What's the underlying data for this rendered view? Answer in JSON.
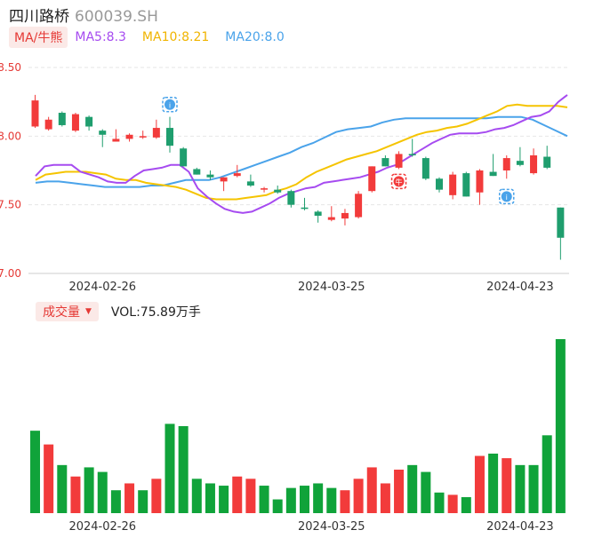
{
  "header": {
    "name": "四川路桥",
    "code": "600039.SH"
  },
  "ma_legend": {
    "toggle": "MA/牛熊",
    "ma5": "MA5:8.3",
    "ma10": "MA10:8.21",
    "ma20": "MA20:8.0"
  },
  "volume_legend": {
    "toggle": "成交量",
    "value": "VOL:75.89万手"
  },
  "colors": {
    "up": "#f23b3b",
    "down": "#10a33a",
    "ma5": "#a64bf0",
    "ma10": "#f5c400",
    "ma20": "#4aa3ea",
    "axis_red": "#e53935"
  },
  "icons": {
    "marker_a": "info-badge-icon",
    "marker_b": "bull-badge-icon",
    "caret": "caret-down-icon"
  },
  "chart_data": [
    {
      "type": "candlestick",
      "ylim": [
        7.0,
        8.5
      ],
      "y_ticks": [
        "8.50",
        "8.00",
        "7.50",
        "7.00"
      ],
      "x_ticks": [
        "2024-02-26",
        "2024-03-25",
        "2024-04-23"
      ],
      "candles": [
        {
          "o": 8.07,
          "h": 8.3,
          "l": 8.06,
          "c": 8.26
        },
        {
          "o": 8.05,
          "h": 8.14,
          "l": 8.04,
          "c": 8.12
        },
        {
          "o": 8.17,
          "h": 8.18,
          "l": 8.07,
          "c": 8.08
        },
        {
          "o": 8.04,
          "h": 8.17,
          "l": 8.03,
          "c": 8.16
        },
        {
          "o": 8.14,
          "h": 8.15,
          "l": 8.04,
          "c": 8.07
        },
        {
          "o": 8.04,
          "h": 8.05,
          "l": 7.92,
          "c": 8.01
        },
        {
          "o": 7.96,
          "h": 8.05,
          "l": 7.96,
          "c": 7.98
        },
        {
          "o": 7.98,
          "h": 8.02,
          "l": 7.96,
          "c": 8.01
        },
        {
          "o": 7.99,
          "h": 8.04,
          "l": 7.98,
          "c": 8.0
        },
        {
          "o": 7.99,
          "h": 8.12,
          "l": 7.98,
          "c": 8.06
        },
        {
          "o": 8.06,
          "h": 8.14,
          "l": 7.88,
          "c": 7.93
        },
        {
          "o": 7.91,
          "h": 7.92,
          "l": 7.78,
          "c": 7.78
        },
        {
          "o": 7.76,
          "h": 7.77,
          "l": 7.72,
          "c": 7.72
        },
        {
          "o": 7.72,
          "h": 7.75,
          "l": 7.68,
          "c": 7.7
        },
        {
          "o": 7.67,
          "h": 7.7,
          "l": 7.6,
          "c": 7.7
        },
        {
          "o": 7.71,
          "h": 7.79,
          "l": 7.7,
          "c": 7.73
        },
        {
          "o": 7.67,
          "h": 7.72,
          "l": 7.63,
          "c": 7.64
        },
        {
          "o": 7.61,
          "h": 7.63,
          "l": 7.59,
          "c": 7.62
        },
        {
          "o": 7.61,
          "h": 7.64,
          "l": 7.58,
          "c": 7.59
        },
        {
          "o": 7.6,
          "h": 7.61,
          "l": 7.48,
          "c": 7.5
        },
        {
          "o": 7.48,
          "h": 7.55,
          "l": 7.46,
          "c": 7.47
        },
        {
          "o": 7.45,
          "h": 7.46,
          "l": 7.37,
          "c": 7.42
        },
        {
          "o": 7.39,
          "h": 7.49,
          "l": 7.38,
          "c": 7.41
        },
        {
          "o": 7.4,
          "h": 7.47,
          "l": 7.35,
          "c": 7.44
        },
        {
          "o": 7.41,
          "h": 7.6,
          "l": 7.4,
          "c": 7.58
        },
        {
          "o": 7.6,
          "h": 7.78,
          "l": 7.59,
          "c": 7.78
        },
        {
          "o": 7.84,
          "h": 7.86,
          "l": 7.78,
          "c": 7.78
        },
        {
          "o": 7.77,
          "h": 7.89,
          "l": 7.76,
          "c": 7.87
        },
        {
          "o": 7.87,
          "h": 7.98,
          "l": 7.85,
          "c": 7.86
        },
        {
          "o": 7.84,
          "h": 7.85,
          "l": 7.68,
          "c": 7.69
        },
        {
          "o": 7.69,
          "h": 7.7,
          "l": 7.59,
          "c": 7.61
        },
        {
          "o": 7.57,
          "h": 7.74,
          "l": 7.54,
          "c": 7.72
        },
        {
          "o": 7.73,
          "h": 7.74,
          "l": 7.56,
          "c": 7.56
        },
        {
          "o": 7.59,
          "h": 7.76,
          "l": 7.5,
          "c": 7.75
        },
        {
          "o": 7.74,
          "h": 7.87,
          "l": 7.71,
          "c": 7.71
        },
        {
          "o": 7.75,
          "h": 7.86,
          "l": 7.69,
          "c": 7.84
        },
        {
          "o": 7.82,
          "h": 7.92,
          "l": 7.78,
          "c": 7.79
        },
        {
          "o": 7.73,
          "h": 7.91,
          "l": 7.72,
          "c": 7.86
        },
        {
          "o": 7.85,
          "h": 7.93,
          "l": 7.76,
          "c": 7.77
        },
        {
          "o": 7.48,
          "h": 7.48,
          "l": 7.1,
          "c": 7.26
        }
      ],
      "ma5": [
        7.71,
        7.78,
        7.79,
        7.79,
        7.79,
        7.74,
        7.72,
        7.7,
        7.67,
        7.66,
        7.66,
        7.71,
        7.75,
        7.76,
        7.77,
        7.79,
        7.79,
        7.74,
        7.62,
        7.56,
        7.51,
        7.47,
        7.45,
        7.44,
        7.45,
        7.48,
        7.51,
        7.55,
        7.58,
        7.6,
        7.62,
        7.63,
        7.66,
        7.67,
        7.68,
        7.69,
        7.7,
        7.72,
        7.74,
        7.77,
        7.79,
        7.83,
        7.87,
        7.91,
        7.95,
        7.98,
        8.01,
        8.02,
        8.02,
        8.02,
        8.03,
        8.05,
        8.06,
        8.08,
        8.11,
        8.14,
        8.15,
        8.18,
        8.25,
        8.3
      ],
      "ma10": [
        7.68,
        7.72,
        7.73,
        7.74,
        7.74,
        7.74,
        7.73,
        7.72,
        7.69,
        7.68,
        7.68,
        7.66,
        7.65,
        7.64,
        7.63,
        7.61,
        7.58,
        7.55,
        7.54,
        7.54,
        7.54,
        7.55,
        7.56,
        7.57,
        7.6,
        7.62,
        7.65,
        7.7,
        7.74,
        7.77,
        7.8,
        7.83,
        7.85,
        7.87,
        7.89,
        7.92,
        7.95,
        7.98,
        8.01,
        8.03,
        8.04,
        8.06,
        8.07,
        8.09,
        8.12,
        8.15,
        8.18,
        8.22,
        8.23,
        8.22,
        8.22,
        8.22,
        8.22,
        8.21
      ],
      "ma20": [
        7.66,
        7.67,
        7.67,
        7.66,
        7.65,
        7.64,
        7.63,
        7.63,
        7.63,
        7.63,
        7.64,
        7.64,
        7.66,
        7.68,
        7.68,
        7.68,
        7.7,
        7.73,
        7.76,
        7.79,
        7.82,
        7.85,
        7.88,
        7.92,
        7.95,
        7.99,
        8.03,
        8.05,
        8.06,
        8.07,
        8.1,
        8.12,
        8.13,
        8.13,
        8.13,
        8.13,
        8.13,
        8.13,
        8.13,
        8.13,
        8.14,
        8.14,
        8.14,
        8.12,
        8.08,
        8.04,
        8.0
      ]
    },
    {
      "type": "bar",
      "title": "成交量",
      "unit": "万手",
      "last_value": 75.89,
      "values": [
        36,
        30,
        21,
        16,
        20,
        18,
        10,
        13,
        10,
        15,
        39,
        38,
        15,
        13,
        12,
        16,
        15,
        12,
        6,
        11,
        12,
        13,
        11,
        10,
        15,
        20,
        13,
        19,
        21,
        18,
        9,
        8,
        7,
        25,
        26,
        24,
        21,
        21,
        34,
        76
      ],
      "up": [
        false,
        true,
        false,
        true,
        false,
        false,
        false,
        true,
        false,
        true,
        false,
        false,
        false,
        false,
        false,
        true,
        true,
        false,
        false,
        false,
        false,
        false,
        false,
        true,
        true,
        true,
        true,
        true,
        false,
        false,
        false,
        true,
        false,
        true,
        false,
        true,
        false,
        false,
        false,
        false
      ]
    }
  ]
}
